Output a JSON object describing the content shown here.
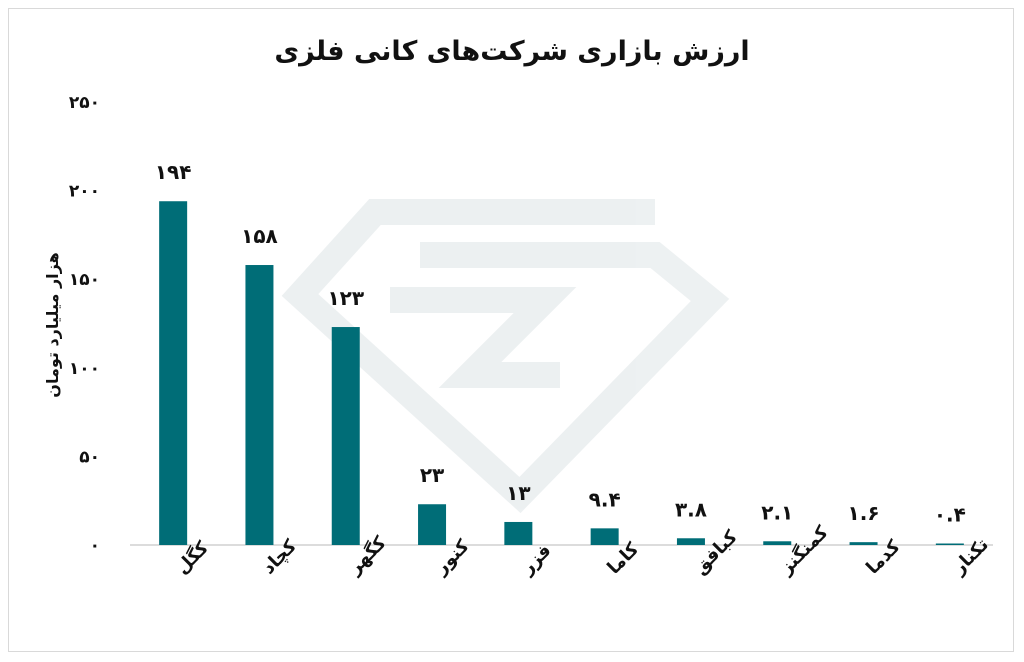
{
  "chart_data": {
    "type": "bar",
    "title": "ارزش بازاری شرکت‌های کانی فلزی",
    "ylabel": "هزار میلیارد تومان",
    "ylim": [
      0,
      250
    ],
    "yticks": [
      0,
      50,
      100,
      150,
      200,
      250
    ],
    "ytick_labels": [
      "۰",
      "۵۰",
      "۱۰۰",
      "۱۵۰",
      "۲۰۰",
      "۲۵۰"
    ],
    "categories": [
      "کگل",
      "کچاد",
      "کگهر",
      "کنور",
      "فزر",
      "کاما",
      "کبافق",
      "کمنگنز",
      "کدما",
      "تکنار"
    ],
    "values": [
      194,
      158,
      123,
      23,
      13,
      9.4,
      3.8,
      2.1,
      1.6,
      0.4
    ],
    "value_labels": [
      "۱۹۴",
      "۱۵۸",
      "۱۲۳",
      "۲۳",
      "۱۳",
      "۹.۴",
      "۳.۸",
      "۲.۱",
      "۱.۶",
      "۰.۴"
    ],
    "bar_color": "#006d77",
    "grid": false,
    "legend": "none"
  }
}
